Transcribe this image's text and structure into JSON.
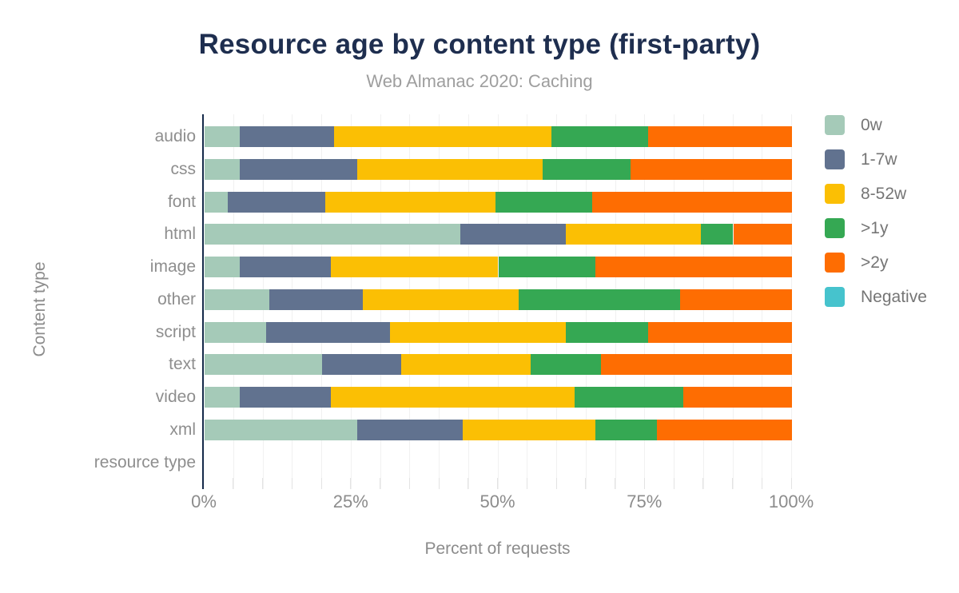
{
  "header": {
    "title": "Resource age by content type (first-party)",
    "subtitle": "Web Almanac 2020: Caching"
  },
  "chart_data": {
    "type": "bar",
    "orientation": "horizontal",
    "stacked": true,
    "title": "Resource age by content type (first-party)",
    "subtitle": "Web Almanac 2020: Caching",
    "xlabel": "Percent of requests",
    "ylabel": "Content type",
    "xlim": [
      0,
      100
    ],
    "x_ticks": [
      {
        "value": 0,
        "label": "0%"
      },
      {
        "value": 25,
        "label": "25%"
      },
      {
        "value": 50,
        "label": "50%"
      },
      {
        "value": 75,
        "label": "75%"
      },
      {
        "value": 100,
        "label": "100%"
      }
    ],
    "grid": "faint vertical lines every 5%",
    "legend_position": "right",
    "categories": [
      "audio",
      "css",
      "font",
      "html",
      "image",
      "other",
      "script",
      "text",
      "video",
      "xml",
      "resource type"
    ],
    "series": [
      {
        "name": "0w",
        "color": "#a5cab8",
        "values": [
          6,
          6,
          4,
          43.5,
          6,
          11,
          10.5,
          20,
          6,
          26,
          0
        ]
      },
      {
        "name": "1-7w",
        "color": "#61728f",
        "values": [
          16,
          20,
          16.5,
          18,
          15.5,
          16,
          21,
          13.5,
          15.5,
          18,
          0
        ]
      },
      {
        "name": "8-52w",
        "color": "#fbbf04",
        "values": [
          37,
          31.5,
          29,
          23,
          28.5,
          26.5,
          30,
          22,
          41.5,
          22.5,
          0
        ]
      },
      {
        "name": ">1y",
        "color": "#35a853",
        "values": [
          16.5,
          15,
          16.5,
          5.5,
          16.5,
          27.5,
          14,
          12,
          18.5,
          10.5,
          0
        ]
      },
      {
        "name": ">2y",
        "color": "#fe6d02",
        "values": [
          24.5,
          27.5,
          34,
          10,
          33.5,
          19,
          24.5,
          32.5,
          18.5,
          23,
          0
        ]
      },
      {
        "name": "Negative",
        "color": "#46c3cd",
        "values": [
          0,
          0,
          0,
          0,
          0,
          0,
          0,
          0,
          0,
          0,
          0
        ]
      }
    ],
    "colors": {
      "title": "#1e2e4f",
      "subtitle": "#9e9e9e",
      "axis_text": "#8c8c8c",
      "axis_line": "#152a4a",
      "gridline": "#f1f1f1"
    }
  }
}
